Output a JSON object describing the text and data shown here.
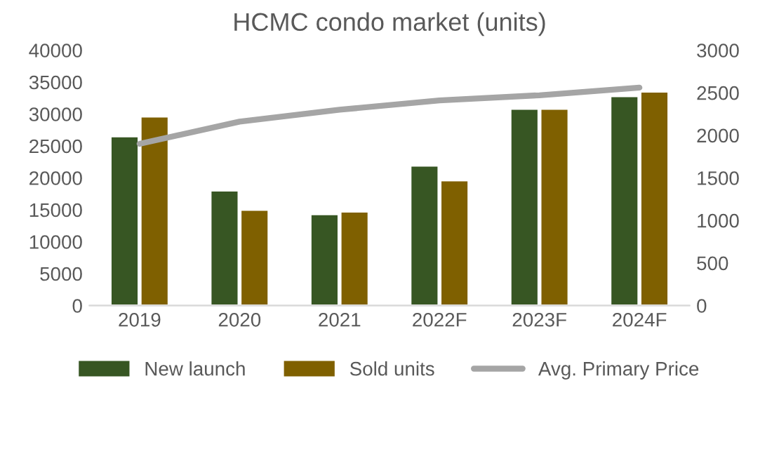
{
  "chart_data": {
    "type": "bar",
    "title": "HCMC condo market (units)",
    "categories": [
      "2019",
      "2020",
      "2021",
      "2022F",
      "2023F",
      "2024F"
    ],
    "series": [
      {
        "name": "New launch",
        "color": "#375623",
        "values": [
          26500,
          18000,
          14300,
          21900,
          30800,
          32800
        ]
      },
      {
        "name": "Sold units",
        "color": "#7f6000",
        "values": [
          29600,
          15000,
          14700,
          19600,
          30800,
          33500
        ]
      },
      {
        "name": "Avg. Primary Price",
        "type": "line",
        "axis": "y2",
        "color": "#a5a5a5",
        "values": [
          1900,
          2160,
          2300,
          2410,
          2470,
          2560
        ]
      }
    ],
    "ylim": [
      0,
      40000
    ],
    "yticks": [
      0,
      5000,
      10000,
      15000,
      20000,
      25000,
      30000,
      35000,
      40000
    ],
    "y2lim": [
      0,
      3000
    ],
    "y2ticks": [
      0,
      500,
      1000,
      1500,
      2000,
      2500,
      3000
    ],
    "grid": false,
    "legend": "bottom",
    "marker": "none"
  }
}
